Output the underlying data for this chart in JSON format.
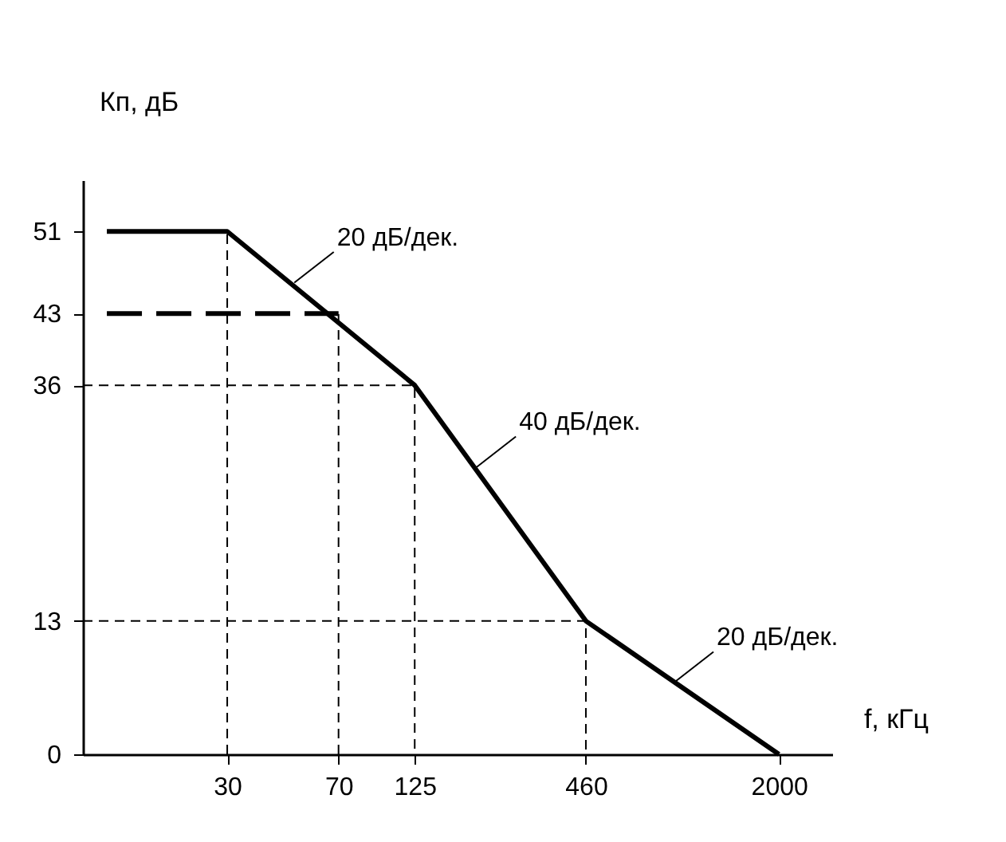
{
  "chart_data": {
    "type": "line",
    "xlabel": "f, кГц",
    "ylabel": "Кп, дБ",
    "log": "x",
    "xlim": [
      10,
      3000
    ],
    "ylim": [
      0,
      56
    ],
    "xticks": [
      30,
      70,
      125,
      460,
      2000
    ],
    "yticks": [
      0,
      13,
      36,
      43,
      51
    ],
    "grid": false,
    "marker": "none",
    "series": [
      {
        "color": "#000000",
        "line_style": "solid",
        "x": [
          12,
          30,
          125,
          460,
          2000
        ],
        "values": [
          51,
          51,
          36,
          13,
          0
        ]
      },
      {
        "color": "#000000",
        "line_style": "dashed",
        "x": [
          12,
          70
        ],
        "values": [
          43,
          43
        ]
      },
      {
        "color": "#000000",
        "line_style": "dotted",
        "x": [
          30,
          30
        ],
        "values": [
          0,
          51
        ]
      },
      {
        "color": "#000000",
        "line_style": "dotted",
        "x": [
          70,
          70
        ],
        "values": [
          0,
          43
        ]
      },
      {
        "color": "#000000",
        "line_style": "dotted",
        "x": [
          10,
          125,
          125
        ],
        "values": [
          36,
          36,
          0
        ]
      },
      {
        "color": "#000000",
        "line_style": "dotted",
        "x": [
          10,
          460,
          460
        ],
        "values": [
          13,
          13,
          0
        ]
      }
    ],
    "annotations": [
      {
        "text": "20 дБ/дек.",
        "x": 50,
        "y": 46
      },
      {
        "text": "40 дБ/дек.",
        "x": 200,
        "y": 28
      },
      {
        "text": "20 дБ/дек.",
        "x": 900,
        "y": 7
      }
    ]
  }
}
